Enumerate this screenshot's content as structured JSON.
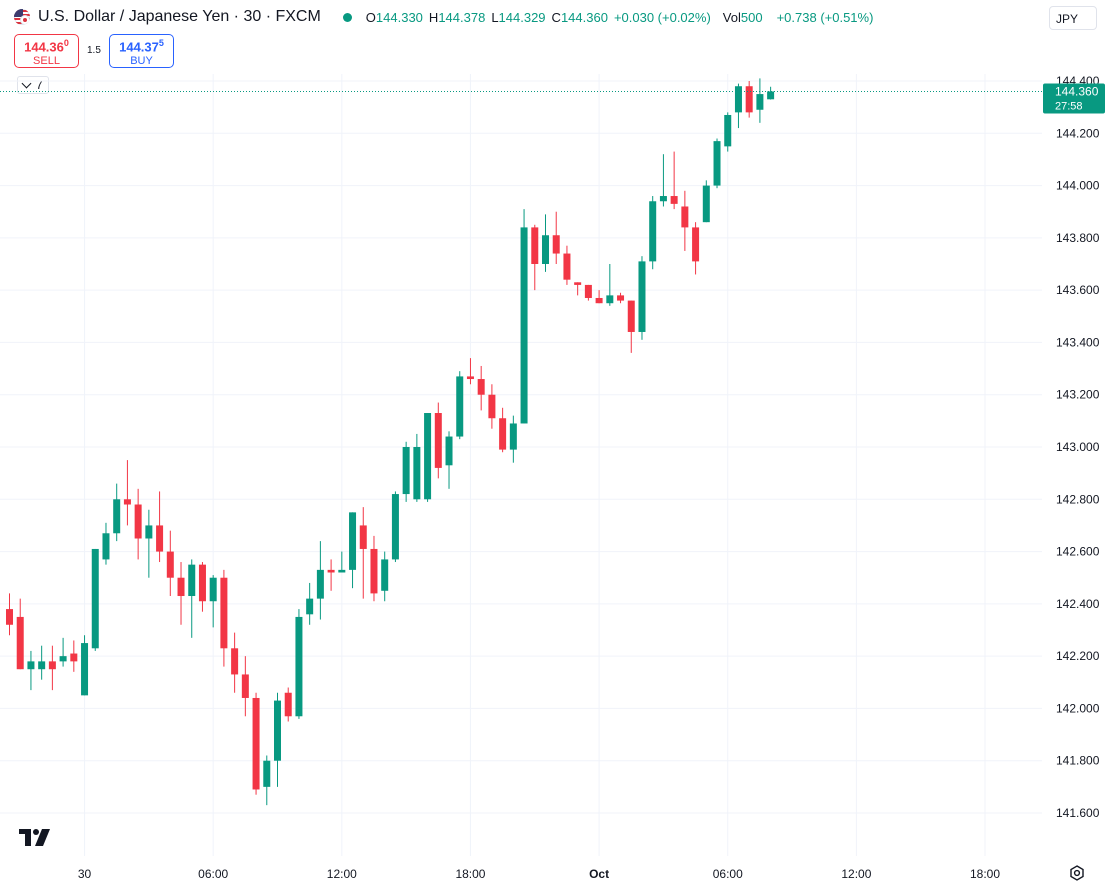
{
  "header": {
    "title": "U.S. Dollar / Japanese Yen · 30 · FXCM",
    "ohlc": [
      {
        "key": "O",
        "value": "144.330"
      },
      {
        "key": "H",
        "value": "144.378"
      },
      {
        "key": "L",
        "value": "144.329"
      },
      {
        "key": "C",
        "value": "144.360"
      },
      {
        "key": "",
        "value": "+0.030 (+0.02%)"
      },
      {
        "key": "Vol",
        "value": "500"
      },
      {
        "key": "",
        "value": "+0.738 (+0.51%)"
      }
    ],
    "currency": "JPY"
  },
  "trade": {
    "sell_price": "144.36",
    "sell_price_sup": "0",
    "sell_label": "SELL",
    "spread": "1.5",
    "buy_price": "144.37",
    "buy_price_sup": "5",
    "buy_label": "BUY"
  },
  "indicators": {
    "count": "7"
  },
  "colors": {
    "up": "#089981",
    "down": "#f23645",
    "grid": "#f0f3fa"
  },
  "chart_data": {
    "type": "candlestick",
    "symbol": "USDJPY",
    "interval_minutes": 30,
    "y_ticks": [
      141.6,
      141.8,
      142.0,
      142.2,
      142.4,
      142.6,
      142.8,
      143.0,
      143.2,
      143.4,
      143.6,
      143.8,
      144.0,
      144.2,
      144.4
    ],
    "y_tick_labels": [
      "141.600",
      "141.800",
      "142.000",
      "142.200",
      "142.400",
      "142.600",
      "142.800",
      "143.000",
      "143.200",
      "143.400",
      "143.600",
      "143.800",
      "144.000",
      "144.200",
      "144.400"
    ],
    "ylim": [
      141.45,
      144.69
    ],
    "x_tick_labels": [
      "30",
      "06:00",
      "12:00",
      "18:00",
      "Oct",
      "06:00",
      "12:00",
      "18:00"
    ],
    "x_tick_bar_index": [
      7,
      19,
      31,
      43,
      55,
      67,
      79,
      91
    ],
    "x_bold": [
      false,
      false,
      false,
      false,
      true,
      false,
      false,
      false
    ],
    "last_price": "144.360",
    "last_price_value": 144.36,
    "countdown": "27:58",
    "candles": [
      {
        "o": 142.38,
        "h": 142.44,
        "l": 142.28,
        "c": 142.32
      },
      {
        "o": 142.35,
        "h": 142.42,
        "l": 142.15,
        "c": 142.15
      },
      {
        "o": 142.15,
        "h": 142.22,
        "l": 142.07,
        "c": 142.18
      },
      {
        "o": 142.15,
        "h": 142.24,
        "l": 142.11,
        "c": 142.18
      },
      {
        "o": 142.18,
        "h": 142.24,
        "l": 142.07,
        "c": 142.15
      },
      {
        "o": 142.18,
        "h": 142.27,
        "l": 142.16,
        "c": 142.2
      },
      {
        "o": 142.21,
        "h": 142.26,
        "l": 142.14,
        "c": 142.18
      },
      {
        "o": 142.05,
        "h": 142.28,
        "l": 142.05,
        "c": 142.25
      },
      {
        "o": 142.23,
        "h": 142.61,
        "l": 142.22,
        "c": 142.61
      },
      {
        "o": 142.57,
        "h": 142.71,
        "l": 142.55,
        "c": 142.67
      },
      {
        "o": 142.67,
        "h": 142.86,
        "l": 142.64,
        "c": 142.8
      },
      {
        "o": 142.8,
        "h": 142.95,
        "l": 142.7,
        "c": 142.78
      },
      {
        "o": 142.78,
        "h": 142.84,
        "l": 142.57,
        "c": 142.65
      },
      {
        "o": 142.65,
        "h": 142.76,
        "l": 142.5,
        "c": 142.7
      },
      {
        "o": 142.7,
        "h": 142.83,
        "l": 142.56,
        "c": 142.6
      },
      {
        "o": 142.6,
        "h": 142.68,
        "l": 142.43,
        "c": 142.5
      },
      {
        "o": 142.5,
        "h": 142.56,
        "l": 142.32,
        "c": 142.43
      },
      {
        "o": 142.43,
        "h": 142.57,
        "l": 142.27,
        "c": 142.55
      },
      {
        "o": 142.55,
        "h": 142.56,
        "l": 142.37,
        "c": 142.41
      },
      {
        "o": 142.41,
        "h": 142.51,
        "l": 142.31,
        "c": 142.5
      },
      {
        "o": 142.5,
        "h": 142.53,
        "l": 142.16,
        "c": 142.23
      },
      {
        "o": 142.23,
        "h": 142.29,
        "l": 142.06,
        "c": 142.13
      },
      {
        "o": 142.13,
        "h": 142.2,
        "l": 141.97,
        "c": 142.04
      },
      {
        "o": 142.04,
        "h": 142.06,
        "l": 141.67,
        "c": 141.69
      },
      {
        "o": 141.7,
        "h": 141.82,
        "l": 141.63,
        "c": 141.8
      },
      {
        "o": 141.8,
        "h": 142.06,
        "l": 141.7,
        "c": 142.03
      },
      {
        "o": 142.06,
        "h": 142.08,
        "l": 141.95,
        "c": 141.97
      },
      {
        "o": 141.97,
        "h": 142.38,
        "l": 141.96,
        "c": 142.35
      },
      {
        "o": 142.36,
        "h": 142.48,
        "l": 142.32,
        "c": 142.42
      },
      {
        "o": 142.42,
        "h": 142.64,
        "l": 142.34,
        "c": 142.53
      },
      {
        "o": 142.53,
        "h": 142.57,
        "l": 142.45,
        "c": 142.52
      },
      {
        "o": 142.52,
        "h": 142.6,
        "l": 142.52,
        "c": 142.53
      },
      {
        "o": 142.53,
        "h": 142.75,
        "l": 142.46,
        "c": 142.75
      },
      {
        "o": 142.7,
        "h": 142.77,
        "l": 142.42,
        "c": 142.61
      },
      {
        "o": 142.61,
        "h": 142.66,
        "l": 142.41,
        "c": 142.44
      },
      {
        "o": 142.45,
        "h": 142.6,
        "l": 142.41,
        "c": 142.57
      },
      {
        "o": 142.57,
        "h": 142.83,
        "l": 142.56,
        "c": 142.82
      },
      {
        "o": 142.82,
        "h": 143.02,
        "l": 142.79,
        "c": 143.0
      },
      {
        "o": 142.8,
        "h": 143.05,
        "l": 142.79,
        "c": 143.0
      },
      {
        "o": 142.8,
        "h": 143.13,
        "l": 142.79,
        "c": 143.13
      },
      {
        "o": 143.13,
        "h": 143.17,
        "l": 142.88,
        "c": 142.92
      },
      {
        "o": 142.93,
        "h": 143.06,
        "l": 142.84,
        "c": 143.04
      },
      {
        "o": 143.04,
        "h": 143.29,
        "l": 143.03,
        "c": 143.27
      },
      {
        "o": 143.27,
        "h": 143.34,
        "l": 143.24,
        "c": 143.26
      },
      {
        "o": 143.26,
        "h": 143.31,
        "l": 143.14,
        "c": 143.2
      },
      {
        "o": 143.2,
        "h": 143.24,
        "l": 143.07,
        "c": 143.11
      },
      {
        "o": 143.11,
        "h": 143.15,
        "l": 142.98,
        "c": 142.99
      },
      {
        "o": 142.99,
        "h": 143.12,
        "l": 142.94,
        "c": 143.09
      },
      {
        "o": 143.09,
        "h": 143.91,
        "l": 143.09,
        "c": 143.84
      },
      {
        "o": 143.84,
        "h": 143.85,
        "l": 143.6,
        "c": 143.7
      },
      {
        "o": 143.7,
        "h": 143.89,
        "l": 143.67,
        "c": 143.81
      },
      {
        "o": 143.81,
        "h": 143.9,
        "l": 143.7,
        "c": 143.74
      },
      {
        "o": 143.74,
        "h": 143.77,
        "l": 143.62,
        "c": 143.64
      },
      {
        "o": 143.63,
        "h": 143.63,
        "l": 143.58,
        "c": 143.62
      },
      {
        "o": 143.62,
        "h": 143.62,
        "l": 143.56,
        "c": 143.57
      },
      {
        "o": 143.57,
        "h": 143.6,
        "l": 143.55,
        "c": 143.55
      },
      {
        "o": 143.55,
        "h": 143.7,
        "l": 143.54,
        "c": 143.58
      },
      {
        "o": 143.58,
        "h": 143.59,
        "l": 143.55,
        "c": 143.56
      },
      {
        "o": 143.56,
        "h": 143.56,
        "l": 143.36,
        "c": 143.44
      },
      {
        "o": 143.44,
        "h": 143.73,
        "l": 143.41,
        "c": 143.71
      },
      {
        "o": 143.71,
        "h": 143.96,
        "l": 143.68,
        "c": 143.94
      },
      {
        "o": 143.94,
        "h": 144.12,
        "l": 143.92,
        "c": 143.96
      },
      {
        "o": 143.96,
        "h": 144.13,
        "l": 143.91,
        "c": 143.93
      },
      {
        "o": 143.92,
        "h": 143.98,
        "l": 143.75,
        "c": 143.84
      },
      {
        "o": 143.84,
        "h": 143.86,
        "l": 143.66,
        "c": 143.71
      },
      {
        "o": 143.86,
        "h": 144.02,
        "l": 143.86,
        "c": 144.0
      },
      {
        "o": 144.0,
        "h": 144.18,
        "l": 143.99,
        "c": 144.17
      },
      {
        "o": 144.15,
        "h": 144.28,
        "l": 144.13,
        "c": 144.27
      },
      {
        "o": 144.28,
        "h": 144.39,
        "l": 144.22,
        "c": 144.38
      },
      {
        "o": 144.38,
        "h": 144.4,
        "l": 144.26,
        "c": 144.28
      },
      {
        "o": 144.29,
        "h": 144.41,
        "l": 144.24,
        "c": 144.35
      },
      {
        "o": 144.33,
        "h": 144.378,
        "l": 144.329,
        "c": 144.36
      }
    ]
  }
}
